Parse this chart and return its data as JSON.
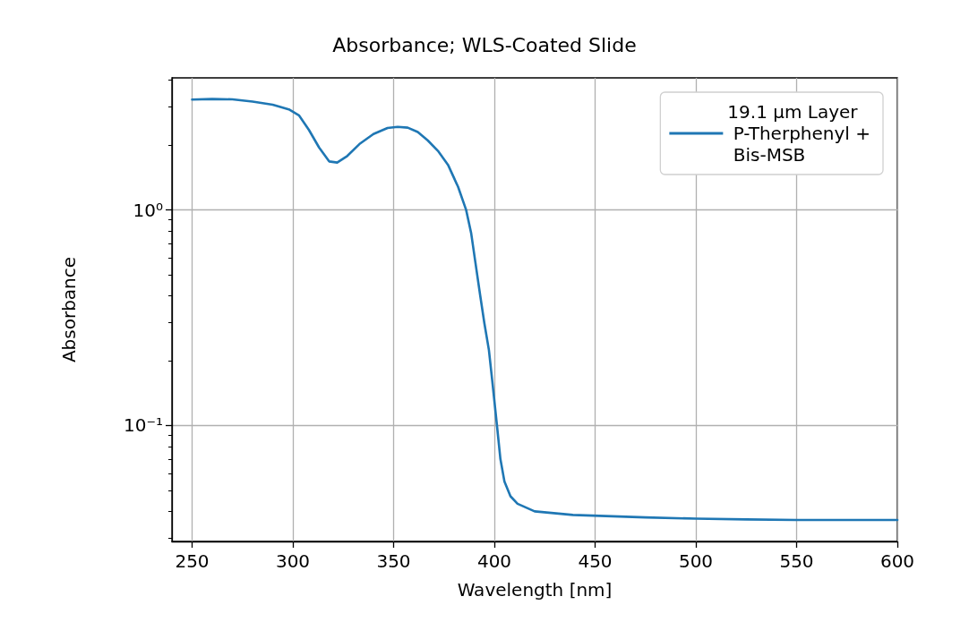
{
  "chart_data": {
    "type": "line",
    "title": "Absorbance; WLS-Coated Slide",
    "xlabel": "Wavelength [nm]",
    "ylabel": "Absorbance",
    "log": "y",
    "grid": true,
    "legend": "top right",
    "line_style": "solid",
    "marker": "none",
    "xlim": [
      240,
      600
    ],
    "xticks": [
      250,
      300,
      350,
      400,
      450,
      500,
      550,
      600
    ],
    "ylim": [
      0.029,
      4.1
    ],
    "yticks": [
      {
        "value": 0.03,
        "label": null
      },
      {
        "value": 0.04,
        "label": null
      },
      {
        "value": 0.05,
        "label": null
      },
      {
        "value": 0.06,
        "label": null
      },
      {
        "value": 0.07,
        "label": null
      },
      {
        "value": 0.08,
        "label": null
      },
      {
        "value": 0.09,
        "label": null
      },
      {
        "value": 0.1,
        "label": "10⁻¹"
      },
      {
        "value": 0.2,
        "label": null
      },
      {
        "value": 0.3,
        "label": null
      },
      {
        "value": 0.4,
        "label": null
      },
      {
        "value": 0.5,
        "label": null
      },
      {
        "value": 0.6,
        "label": null
      },
      {
        "value": 0.7,
        "label": null
      },
      {
        "value": 0.8,
        "label": null
      },
      {
        "value": 0.9,
        "label": null
      },
      {
        "value": 1,
        "label": "10⁰"
      },
      {
        "value": 2,
        "label": null
      },
      {
        "value": 3,
        "label": null
      },
      {
        "value": 4,
        "label": null
      }
    ],
    "series": [
      {
        "name": "19.1 µm Layer\n P-Therphenyl +\n Bis-MSB",
        "color": "#1f77b4",
        "x": [
          250,
          260,
          270,
          280,
          290,
          298,
          303,
          308,
          313,
          318,
          322,
          327,
          333,
          340,
          347,
          352,
          357,
          362,
          367,
          372,
          377,
          382,
          386,
          388.5,
          390.6,
          393,
          395,
          397.3,
          399,
          401.3,
          403,
          405,
          408,
          411.5,
          420,
          439,
          475,
          500,
          525,
          550,
          575,
          600
        ],
        "values": [
          3.25,
          3.27,
          3.26,
          3.18,
          3.08,
          2.93,
          2.75,
          2.35,
          1.95,
          1.68,
          1.66,
          1.78,
          2.02,
          2.25,
          2.4,
          2.43,
          2.41,
          2.3,
          2.1,
          1.88,
          1.62,
          1.28,
          1.0,
          0.78,
          0.57,
          0.4,
          0.3,
          0.224,
          0.16,
          0.1,
          0.07,
          0.055,
          0.047,
          0.0434,
          0.04,
          0.0385,
          0.0375,
          0.037,
          0.0367,
          0.0365,
          0.0365,
          0.0365
        ]
      }
    ]
  }
}
